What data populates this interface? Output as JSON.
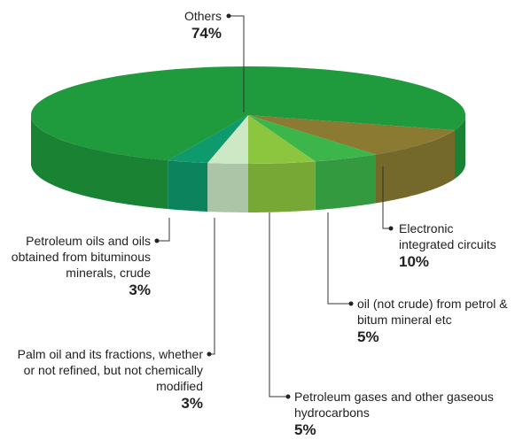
{
  "chart_data": {
    "type": "pie3d",
    "categories": [
      "Others",
      "Electronic integrated circuits",
      "oil (not crude) from petrol & bitum mineral etc",
      "Petroleum gases and other gaseous hydrocarbons",
      "Palm oil and its fractions, whether or not refined, but not chemically modified",
      "Petroleum oils and oils obtained from bituminous minerals, crude"
    ],
    "values": [
      74,
      10,
      5,
      5,
      3,
      3
    ],
    "value_labels": [
      "74%",
      "10%",
      "5%",
      "5%",
      "3%",
      "3%"
    ],
    "colors": [
      "#1f9a3c",
      "#8a7a32",
      "#3cb54a",
      "#8cc63f",
      "#cce8c4",
      "#0e9a6c"
    ]
  }
}
